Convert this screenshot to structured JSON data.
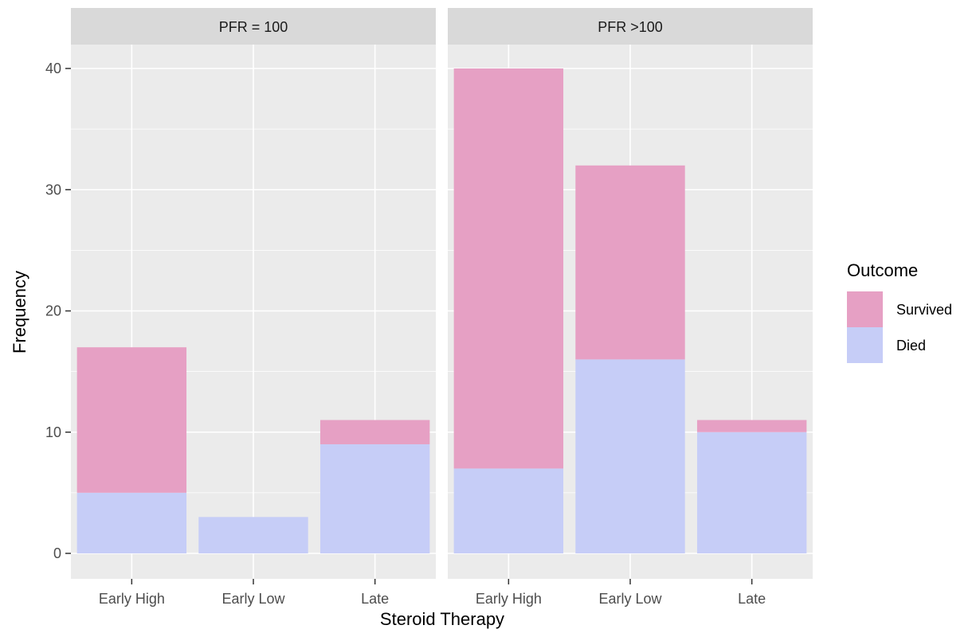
{
  "chart_data": {
    "type": "bar",
    "stacked": true,
    "categories": [
      "Early High",
      "Early Low",
      "Late"
    ],
    "xlabel": "Steroid Therapy",
    "ylabel": "Frequency",
    "ylim": [
      0,
      42
    ],
    "yticks": [
      0,
      10,
      20,
      30,
      40
    ],
    "grid": true,
    "legend": {
      "title": "Outcome",
      "position": "right",
      "entries": [
        {
          "name": "Survived",
          "color": "#e6a0c4"
        },
        {
          "name": "Died",
          "color": "#c6cdf7"
        }
      ]
    },
    "panels": [
      {
        "label": "PFR = 100",
        "series": [
          {
            "name": "Died",
            "values": [
              5,
              3,
              9
            ]
          },
          {
            "name": "Survived",
            "values": [
              12,
              0,
              2
            ]
          }
        ]
      },
      {
        "label": "PFR >100",
        "series": [
          {
            "name": "Died",
            "values": [
              7,
              16,
              10
            ]
          },
          {
            "name": "Survived",
            "values": [
              33,
              16,
              1
            ]
          }
        ]
      }
    ],
    "colors": {
      "panel_bg": "#ebebeb",
      "strip_bg": "#d9d9d9",
      "grid": "#ffffff"
    }
  }
}
